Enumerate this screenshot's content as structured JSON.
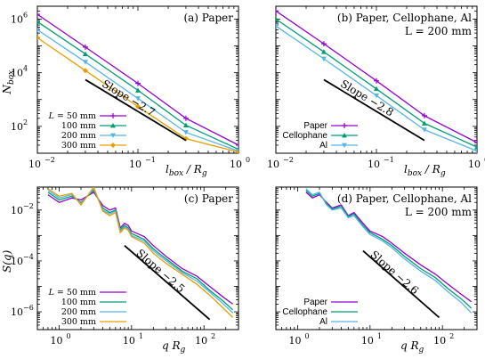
{
  "chart_data": [
    {
      "type": "line",
      "title": "(a) Paper",
      "subtitle": "",
      "xlabel": "l_box / R_g",
      "ylabel": "N_box",
      "xscale": "log",
      "yscale": "log",
      "xlim": [
        0.01,
        1
      ],
      "ylim": [
        10,
        3000000
      ],
      "xticks": [
        {
          "v": 0.01,
          "label": "10"
        },
        {
          "v": 0.1,
          "label": "10"
        },
        {
          "v": 1,
          "label": "10"
        }
      ],
      "xtick_exp": [
        "−2",
        "−1",
        "0"
      ],
      "yticks": [
        {
          "v": 100,
          "label": "10"
        },
        {
          "v": 10000,
          "label": "10"
        },
        {
          "v": 1000000,
          "label": "10"
        }
      ],
      "ytick_exp": [
        "2",
        "4",
        "6"
      ],
      "legend_position": "bottom-left",
      "slope_label": "Slope −2.7",
      "slope_line": {
        "x": [
          0.03,
          0.3
        ],
        "y": [
          5500,
          30
        ]
      },
      "series": [
        {
          "name": "L = 50 mm",
          "color": "#9400d3",
          "marker": "plus",
          "x": [
            0.01,
            0.03,
            0.1,
            0.3,
            1
          ],
          "y": [
            1500000,
            90000,
            4000,
            200,
            20
          ]
        },
        {
          "name": "100 mm",
          "color": "#009e73",
          "marker": "triangle",
          "x": [
            0.01,
            0.03,
            0.1,
            0.3,
            1
          ],
          "y": [
            800000,
            50000,
            2200,
            110,
            14
          ]
        },
        {
          "name": "200 mm",
          "color": "#56b4e9",
          "marker": "tri-down",
          "x": [
            0.01,
            0.03,
            0.1,
            0.3,
            1
          ],
          "y": [
            400000,
            25000,
            1100,
            60,
            12
          ]
        },
        {
          "name": "300 mm",
          "color": "#e69f00",
          "marker": "diamond",
          "x": [
            0.01,
            0.03,
            0.1,
            0.3,
            1
          ],
          "y": [
            200000,
            12000,
            550,
            35,
            11
          ]
        }
      ]
    },
    {
      "type": "line",
      "title": "(b) Paper, Cellophane, Al",
      "subtitle": "L = 200 mm",
      "xlabel": "l_box / R_g",
      "ylabel": "",
      "xscale": "log",
      "yscale": "log",
      "xlim": [
        0.01,
        1
      ],
      "ylim": [
        10,
        3000000
      ],
      "xticks": [
        {
          "v": 0.01,
          "label": "10"
        },
        {
          "v": 0.1,
          "label": "10"
        },
        {
          "v": 1,
          "label": "10"
        }
      ],
      "xtick_exp": [
        "−2",
        "−1",
        "0"
      ],
      "yticks": [],
      "ytick_exp": [],
      "legend_position": "bottom-left",
      "slope_label": "Slope −2.8",
      "slope_line": {
        "x": [
          0.03,
          0.3
        ],
        "y": [
          5500,
          30
        ]
      },
      "series": [
        {
          "name": "Paper",
          "color": "#9400d3",
          "marker": "plus",
          "x": [
            0.01,
            0.03,
            0.1,
            0.3,
            1
          ],
          "y": [
            2000000,
            120000,
            5000,
            250,
            25
          ]
        },
        {
          "name": "Cellophane",
          "color": "#009e73",
          "marker": "triangle",
          "x": [
            0.01,
            0.03,
            0.1,
            0.3,
            1
          ],
          "y": [
            1000000,
            60000,
            2500,
            130,
            17
          ]
        },
        {
          "name": "Al",
          "color": "#56b4e9",
          "marker": "tri-down",
          "x": [
            0.01,
            0.03,
            0.1,
            0.3,
            1
          ],
          "y": [
            550000,
            33000,
            1400,
            75,
            12
          ]
        }
      ]
    },
    {
      "type": "line",
      "title": "(c) Paper",
      "subtitle": "",
      "xlabel": "q R_g",
      "ylabel": "S(q)",
      "xscale": "log",
      "yscale": "log",
      "xlim": [
        0.5,
        300
      ],
      "ylim": [
        2e-07,
        0.08
      ],
      "xticks": [
        {
          "v": 1,
          "label": "10"
        },
        {
          "v": 10,
          "label": "10"
        },
        {
          "v": 100,
          "label": "10"
        }
      ],
      "xtick_exp": [
        "0",
        "1",
        "2"
      ],
      "yticks": [
        {
          "v": 1e-06,
          "label": "10"
        },
        {
          "v": 0.0001,
          "label": "10"
        },
        {
          "v": 0.01,
          "label": "10"
        }
      ],
      "ytick_exp": [
        "−6",
        "−4",
        "−2"
      ],
      "legend_position": "bottom-left",
      "slope_label": "Slope −2.5",
      "slope_line": {
        "x": [
          8,
          120
        ],
        "y": [
          0.0004,
          5e-07
        ]
      },
      "series": [
        {
          "name": "L = 50 mm",
          "color": "#9400d3",
          "x": [
            0.7,
            1,
            1.5,
            2,
            3,
            4,
            5,
            6,
            7,
            8,
            9,
            10,
            15,
            20,
            30,
            50,
            80,
            120,
            180,
            250
          ],
          "y": [
            0.04,
            0.02,
            0.03,
            0.025,
            0.05,
            0.015,
            0.01,
            0.012,
            0.002,
            0.003,
            0.0025,
            0.0015,
            0.0009,
            0.0004,
            0.00015,
            5e-05,
            2.5e-05,
            1e-05,
            4e-06,
            2e-06
          ]
        },
        {
          "name": "100 mm",
          "color": "#009e73",
          "x": [
            0.7,
            1,
            1.5,
            2,
            3,
            4,
            5,
            6,
            7,
            8,
            9,
            10,
            15,
            20,
            30,
            50,
            80,
            120,
            180,
            250
          ],
          "y": [
            0.05,
            0.025,
            0.035,
            0.02,
            0.06,
            0.012,
            0.008,
            0.01,
            0.0017,
            0.0025,
            0.002,
            0.0012,
            0.0007,
            0.0003,
            0.00012,
            4e-05,
            2e-05,
            7e-06,
            2.8e-06,
            1.2e-06
          ]
        },
        {
          "name": "200 mm",
          "color": "#56b4e9",
          "x": [
            0.7,
            1,
            1.5,
            2,
            3,
            4,
            5,
            6,
            7,
            8,
            9,
            10,
            15,
            20,
            30,
            50,
            80,
            120,
            180,
            250
          ],
          "y": [
            0.06,
            0.03,
            0.04,
            0.018,
            0.07,
            0.01,
            0.007,
            0.009,
            0.0015,
            0.0022,
            0.0018,
            0.001,
            0.0006,
            0.00025,
            0.0001,
            3.5e-05,
            1.6e-05,
            6e-06,
            2.2e-06,
            9e-07
          ]
        },
        {
          "name": "300 mm",
          "color": "#e69f00",
          "x": [
            0.7,
            1,
            1.5,
            2,
            3,
            4,
            5,
            6,
            7,
            8,
            9,
            10,
            15,
            20,
            30,
            50,
            80,
            120,
            180,
            250
          ],
          "y": [
            0.07,
            0.035,
            0.045,
            0.016,
            0.08,
            0.009,
            0.006,
            0.008,
            0.0013,
            0.002,
            0.0016,
            0.0009,
            0.0005,
            0.0002,
            8e-05,
            3e-05,
            1.2e-05,
            4.5e-06,
            1.5e-06,
            6e-07
          ]
        }
      ]
    },
    {
      "type": "line",
      "title": "(d) Paper, Cellophane, Al",
      "subtitle": "L = 200 mm",
      "xlabel": "q R_g",
      "ylabel": "",
      "xscale": "log",
      "yscale": "log",
      "xlim": [
        0.5,
        300
      ],
      "ylim": [
        2e-07,
        0.08
      ],
      "xticks": [
        {
          "v": 1,
          "label": "10"
        },
        {
          "v": 10,
          "label": "10"
        },
        {
          "v": 100,
          "label": "10"
        }
      ],
      "xtick_exp": [
        "0",
        "1",
        "2"
      ],
      "yticks": [],
      "ytick_exp": [],
      "legend_position": "bottom-left",
      "slope_label": "Slope −2.6",
      "slope_line": {
        "x": [
          8,
          90
        ],
        "y": [
          0.00025,
          6e-07
        ]
      },
      "series": [
        {
          "name": "Paper",
          "color": "#9400d3",
          "x": [
            1.3,
            1.6,
            2,
            2.5,
            3,
            4,
            5,
            6,
            8,
            10,
            15,
            20,
            30,
            50,
            80,
            120,
            180,
            250
          ],
          "y": [
            0.05,
            0.03,
            0.04,
            0.02,
            0.012,
            0.016,
            0.006,
            0.008,
            0.003,
            0.0015,
            0.0009,
            0.0005,
            0.0002,
            7e-05,
            3e-05,
            1.2e-05,
            5e-06,
            2.5e-06
          ]
        },
        {
          "name": "Cellophane",
          "color": "#009e73",
          "x": [
            1.3,
            1.6,
            2,
            2.5,
            3,
            4,
            5,
            6,
            8,
            10,
            15,
            20,
            30,
            50,
            80,
            120,
            180,
            250
          ],
          "y": [
            0.06,
            0.035,
            0.045,
            0.018,
            0.011,
            0.014,
            0.0055,
            0.007,
            0.0025,
            0.0013,
            0.0007,
            0.0004,
            0.00015,
            5e-05,
            2.2e-05,
            8e-06,
            3.3e-06,
            1.4e-06
          ]
        },
        {
          "name": "Al",
          "color": "#56b4e9",
          "x": [
            1.3,
            1.6,
            2,
            2.5,
            3,
            4,
            5,
            6,
            8,
            10,
            15,
            20,
            30,
            50,
            80,
            120,
            180,
            250
          ],
          "y": [
            0.07,
            0.04,
            0.05,
            0.016,
            0.01,
            0.012,
            0.005,
            0.006,
            0.0022,
            0.0011,
            0.0006,
            0.00033,
            0.00012,
            4e-05,
            1.7e-05,
            6e-06,
            2.4e-06,
            9e-07
          ]
        }
      ]
    }
  ]
}
